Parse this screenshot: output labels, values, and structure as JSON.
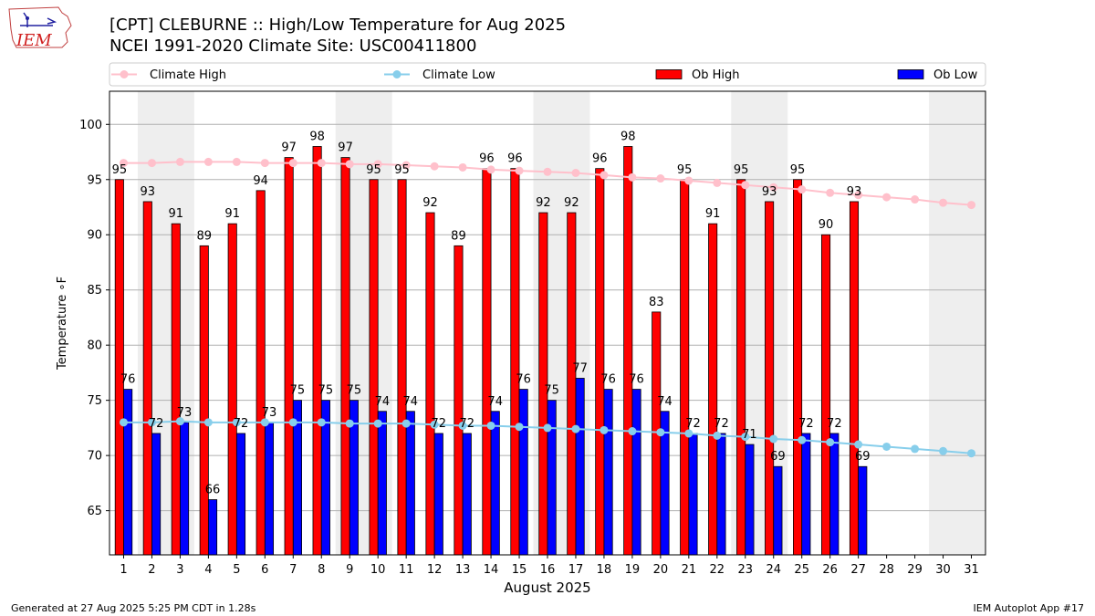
{
  "header": {
    "title_line1": "[CPT] CLEBURNE :: High/Low Temperature for Aug 2025",
    "title_line2": "NCEI 1991-2020 Climate Site: USC00411800",
    "logo_text": "IEM"
  },
  "footer": {
    "generated": "Generated at 27 Aug 2025 5:25 PM CDT in 1.28s",
    "app": "IEM Autoplot App #17"
  },
  "chart_data": {
    "type": "bar",
    "xlabel": "August 2025",
    "ylabel": "Temperature ∘F",
    "ylim": [
      61,
      103
    ],
    "yticks": [
      65,
      70,
      75,
      80,
      85,
      90,
      95,
      100
    ],
    "grid": true,
    "legend_position": "top",
    "legend": [
      "Climate High",
      "Climate Low",
      "Ob High",
      "Ob Low"
    ],
    "days": [
      1,
      2,
      3,
      4,
      5,
      6,
      7,
      8,
      9,
      10,
      11,
      12,
      13,
      14,
      15,
      16,
      17,
      18,
      19,
      20,
      21,
      22,
      23,
      24,
      25,
      26,
      27,
      28,
      29,
      30,
      31
    ],
    "weekend_shaded_days": [
      [
        2,
        3
      ],
      [
        9,
        10
      ],
      [
        16,
        17
      ],
      [
        23,
        24
      ],
      [
        30,
        31
      ]
    ],
    "series": [
      {
        "name": "Ob High",
        "kind": "bar",
        "color": "#ff0000",
        "values": [
          95,
          93,
          91,
          89,
          91,
          94,
          97,
          98,
          97,
          95,
          95,
          92,
          89,
          96,
          96,
          92,
          92,
          96,
          98,
          83,
          95,
          91,
          95,
          93,
          95,
          90,
          93
        ]
      },
      {
        "name": "Ob Low",
        "kind": "bar",
        "color": "#0000ff",
        "values": [
          76,
          72,
          73,
          66,
          72,
          73,
          75,
          75,
          75,
          74,
          74,
          72,
          72,
          74,
          76,
          75,
          77,
          76,
          76,
          74,
          72,
          72,
          71,
          69,
          72,
          72,
          69
        ]
      },
      {
        "name": "Climate High",
        "kind": "line",
        "color": "#ffc0cb",
        "values": [
          96.5,
          96.5,
          96.6,
          96.6,
          96.6,
          96.5,
          96.5,
          96.5,
          96.4,
          96.4,
          96.3,
          96.2,
          96.1,
          95.9,
          95.8,
          95.7,
          95.6,
          95.4,
          95.2,
          95.1,
          94.9,
          94.7,
          94.5,
          94.3,
          94.1,
          93.8,
          93.6,
          93.4,
          93.2,
          92.9,
          92.7
        ]
      },
      {
        "name": "Climate Low",
        "kind": "line",
        "color": "#87ceeb",
        "values": [
          73.0,
          73.0,
          73.1,
          73.0,
          73.0,
          73.0,
          73.0,
          73.0,
          72.9,
          72.9,
          72.9,
          72.8,
          72.7,
          72.7,
          72.6,
          72.5,
          72.4,
          72.3,
          72.2,
          72.1,
          72.0,
          71.8,
          71.7,
          71.5,
          71.4,
          71.2,
          71.0,
          70.8,
          70.6,
          70.4,
          70.2
        ]
      }
    ]
  }
}
